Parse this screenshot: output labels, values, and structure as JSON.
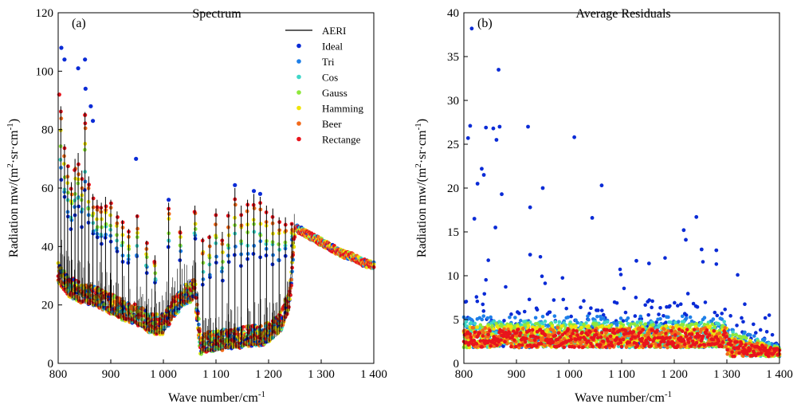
{
  "chart_data": [
    {
      "type": "scatter",
      "panel_label": "(a)",
      "title": "Spectrum",
      "xlabel": "Wave number/cm",
      "xlabel_sup": "-1",
      "ylabel_pre": "Radiation mw/(m",
      "ylabel_sup1": "2",
      "ylabel_mid": "·sr·cm",
      "ylabel_sup2": "-1",
      "ylabel_post": ")",
      "xlim": [
        800,
        1400
      ],
      "ylim": [
        0,
        120
      ],
      "xticks": [
        800,
        900,
        1000,
        1100,
        1200,
        1300,
        1400
      ],
      "xtick_labels": [
        "800",
        "900",
        "1 000",
        "1 100",
        "1 200",
        "1 300",
        "1 400"
      ],
      "yticks": [
        0,
        20,
        40,
        60,
        80,
        100,
        120
      ],
      "ytick_labels": [
        "0",
        "20",
        "40",
        "60",
        "80",
        "100",
        "120"
      ],
      "legend_position": "top-right",
      "legend": [
        {
          "name": "AERI",
          "marker": "line",
          "color": "#000000"
        },
        {
          "name": "Ideal",
          "marker": "dot",
          "color": "#0a2bd6"
        },
        {
          "name": "Tri",
          "marker": "dot",
          "color": "#1e7fe8"
        },
        {
          "name": "Cos",
          "marker": "dot",
          "color": "#3fd6c8"
        },
        {
          "name": "Gauss",
          "marker": "dot",
          "color": "#8ee83c"
        },
        {
          "name": "Hamming",
          "marker": "dot",
          "color": "#f0e40a"
        },
        {
          "name": "Beer",
          "marker": "dot",
          "color": "#f26a1b"
        },
        {
          "name": "Rectange",
          "marker": "dot",
          "color": "#e8141c"
        }
      ],
      "envelope": {
        "x": [
          800,
          820,
          840,
          860,
          880,
          900,
          920,
          940,
          960,
          980,
          1000,
          1020,
          1040,
          1060,
          1070,
          1080,
          1100,
          1120,
          1140,
          1160,
          1180,
          1200,
          1220,
          1240,
          1250,
          1260,
          1280,
          1300,
          1320,
          1340,
          1360,
          1380,
          1400
        ],
        "base": [
          30,
          25,
          23,
          22,
          21,
          19,
          17,
          16,
          14,
          12,
          12,
          18,
          22,
          24,
          5,
          6,
          6,
          7,
          7,
          8,
          8,
          9,
          12,
          20,
          46,
          45,
          43,
          41,
          39,
          37,
          36,
          34,
          33
        ]
      },
      "lines": [
        {
          "x": 805,
          "top": 88
        },
        {
          "x": 812,
          "top": 75
        },
        {
          "x": 818,
          "top": 68
        },
        {
          "x": 825,
          "top": 62
        },
        {
          "x": 832,
          "top": 70
        },
        {
          "x": 838,
          "top": 72
        },
        {
          "x": 845,
          "top": 66
        },
        {
          "x": 851,
          "top": 86
        },
        {
          "x": 858,
          "top": 64
        },
        {
          "x": 866,
          "top": 58
        },
        {
          "x": 874,
          "top": 56
        },
        {
          "x": 882,
          "top": 55
        },
        {
          "x": 890,
          "top": 57
        },
        {
          "x": 900,
          "top": 56
        },
        {
          "x": 912,
          "top": 52
        },
        {
          "x": 922,
          "top": 49
        },
        {
          "x": 934,
          "top": 46
        },
        {
          "x": 950,
          "top": 51
        },
        {
          "x": 968,
          "top": 42
        },
        {
          "x": 984,
          "top": 37
        },
        {
          "x": 1010,
          "top": 55
        },
        {
          "x": 1032,
          "top": 47
        },
        {
          "x": 1060,
          "top": 54
        },
        {
          "x": 1075,
          "top": 43
        },
        {
          "x": 1088,
          "top": 44
        },
        {
          "x": 1100,
          "top": 53
        },
        {
          "x": 1112,
          "top": 45
        },
        {
          "x": 1124,
          "top": 52
        },
        {
          "x": 1136,
          "top": 60
        },
        {
          "x": 1148,
          "top": 54
        },
        {
          "x": 1160,
          "top": 56
        },
        {
          "x": 1172,
          "top": 58
        },
        {
          "x": 1184,
          "top": 57
        },
        {
          "x": 1196,
          "top": 54
        },
        {
          "x": 1208,
          "top": 53
        },
        {
          "x": 1220,
          "top": 50
        },
        {
          "x": 1232,
          "top": 50
        },
        {
          "x": 1244,
          "top": 48
        }
      ],
      "highlights": [
        {
          "x": 806,
          "y": 108,
          "color": "#0a2bd6"
        },
        {
          "x": 812,
          "y": 104,
          "color": "#0a2bd6"
        },
        {
          "x": 838,
          "y": 101,
          "color": "#0a2bd6"
        },
        {
          "x": 851,
          "y": 104,
          "color": "#0a2bd6"
        },
        {
          "x": 852,
          "y": 94,
          "color": "#0a2bd6"
        },
        {
          "x": 862,
          "y": 88,
          "color": "#0a2bd6"
        },
        {
          "x": 866,
          "y": 83,
          "color": "#0a2bd6"
        },
        {
          "x": 948,
          "y": 70,
          "color": "#0a2bd6"
        },
        {
          "x": 1010,
          "y": 56,
          "color": "#0a2bd6"
        },
        {
          "x": 1136,
          "y": 61,
          "color": "#0a2bd6"
        },
        {
          "x": 1172,
          "y": 59,
          "color": "#0a2bd6"
        },
        {
          "x": 1184,
          "y": 58,
          "color": "#0a2bd6"
        },
        {
          "x": 802,
          "y": 92,
          "color": "#e8141c"
        },
        {
          "x": 851,
          "y": 85,
          "color": "#e8141c"
        }
      ]
    },
    {
      "type": "scatter",
      "panel_label": "(b)",
      "title": "Average Residuals",
      "xlabel": "Wave number/cm",
      "xlabel_sup": "-1",
      "ylabel_pre": "Radiation mw/(m",
      "ylabel_sup1": "2",
      "ylabel_mid": "·sr·cm",
      "ylabel_sup2": "-1",
      "ylabel_post": ")",
      "xlim": [
        800,
        1400
      ],
      "ylim": [
        0,
        40
      ],
      "xticks": [
        800,
        900,
        1000,
        1100,
        1200,
        1300,
        1400
      ],
      "xtick_labels": [
        "800",
        "900",
        "1 000",
        "1 100",
        "1 200",
        "1 300",
        "1 400"
      ],
      "yticks": [
        0,
        5,
        10,
        15,
        20,
        25,
        30,
        35,
        40
      ],
      "ytick_labels": [
        "0",
        "5",
        "10",
        "15",
        "20",
        "25",
        "30",
        "35",
        "40"
      ],
      "series_colors": [
        "#0a2bd6",
        "#1e7fe8",
        "#3fd6c8",
        "#8ee83c",
        "#f0e40a",
        "#f26a1b",
        "#e8141c"
      ],
      "outliers": [
        {
          "x": 808,
          "y": 25.7
        },
        {
          "x": 812,
          "y": 27.1
        },
        {
          "x": 815,
          "y": 38.2
        },
        {
          "x": 820,
          "y": 16.5
        },
        {
          "x": 826,
          "y": 20.5
        },
        {
          "x": 834,
          "y": 22.2
        },
        {
          "x": 838,
          "y": 21.5
        },
        {
          "x": 842,
          "y": 26.9
        },
        {
          "x": 856,
          "y": 26.8
        },
        {
          "x": 860,
          "y": 15.5
        },
        {
          "x": 862,
          "y": 25.5
        },
        {
          "x": 866,
          "y": 33.5
        },
        {
          "x": 868,
          "y": 27.0
        },
        {
          "x": 872,
          "y": 19.3
        },
        {
          "x": 922,
          "y": 27.0
        },
        {
          "x": 926,
          "y": 17.8
        },
        {
          "x": 950,
          "y": 20.0
        },
        {
          "x": 1010,
          "y": 25.8
        },
        {
          "x": 1044,
          "y": 16.6
        },
        {
          "x": 1062,
          "y": 20.3
        },
        {
          "x": 1218,
          "y": 15.2
        },
        {
          "x": 1242,
          "y": 16.7
        },
        {
          "x": 1222,
          "y": 14.1
        },
        {
          "x": 1252,
          "y": 13.0
        },
        {
          "x": 1280,
          "y": 12.9
        },
        {
          "x": 1128,
          "y": 11.7
        },
        {
          "x": 1152,
          "y": 11.4
        },
        {
          "x": 926,
          "y": 12.4
        }
      ]
    }
  ]
}
